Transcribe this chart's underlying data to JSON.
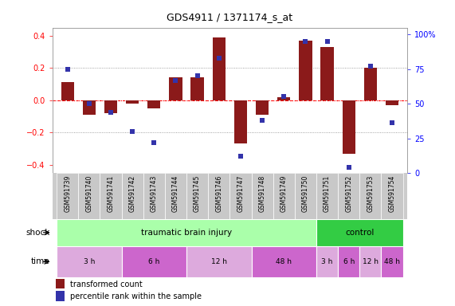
{
  "title": "GDS4911 / 1371174_s_at",
  "samples": [
    "GSM591739",
    "GSM591740",
    "GSM591741",
    "GSM591742",
    "GSM591743",
    "GSM591744",
    "GSM591745",
    "GSM591746",
    "GSM591747",
    "GSM591748",
    "GSM591749",
    "GSM591750",
    "GSM591751",
    "GSM591752",
    "GSM591753",
    "GSM591754"
  ],
  "bar_values": [
    0.11,
    -0.09,
    -0.08,
    -0.02,
    -0.05,
    0.14,
    0.14,
    0.39,
    -0.27,
    -0.09,
    0.02,
    0.37,
    0.33,
    -0.33,
    0.2,
    -0.03
  ],
  "dot_values": [
    75,
    50,
    44,
    30,
    22,
    67,
    70,
    83,
    12,
    38,
    55,
    95,
    95,
    4,
    77,
    36
  ],
  "ylim_left": [
    -0.45,
    0.45
  ],
  "ylim_right": [
    0,
    105
  ],
  "yticks_left": [
    -0.4,
    -0.2,
    0.0,
    0.2,
    0.4
  ],
  "yticks_right": [
    0,
    25,
    50,
    75,
    100
  ],
  "bar_color": "#8B1A1A",
  "dot_color": "#3333AA",
  "shock_groups": [
    {
      "label": "traumatic brain injury",
      "start": 0,
      "end": 12,
      "color": "#AAFFAA"
    },
    {
      "label": "control",
      "start": 12,
      "end": 16,
      "color": "#33CC44"
    }
  ],
  "time_groups": [
    {
      "label": "3 h",
      "start": 0,
      "end": 3,
      "color": "#DDAADD"
    },
    {
      "label": "6 h",
      "start": 3,
      "end": 6,
      "color": "#CC66CC"
    },
    {
      "label": "12 h",
      "start": 6,
      "end": 9,
      "color": "#DDAADD"
    },
    {
      "label": "48 h",
      "start": 9,
      "end": 12,
      "color": "#CC66CC"
    },
    {
      "label": "3 h",
      "start": 12,
      "end": 13,
      "color": "#DDAADD"
    },
    {
      "label": "6 h",
      "start": 13,
      "end": 14,
      "color": "#CC66CC"
    },
    {
      "label": "12 h",
      "start": 14,
      "end": 15,
      "color": "#DDAADD"
    },
    {
      "label": "48 h",
      "start": 15,
      "end": 16,
      "color": "#CC66CC"
    }
  ],
  "legend_bar_label": "transformed count",
  "legend_dot_label": "percentile rank within the sample",
  "shock_label": "shock",
  "time_label": "time",
  "tick_bg_color": "#CCCCCC"
}
